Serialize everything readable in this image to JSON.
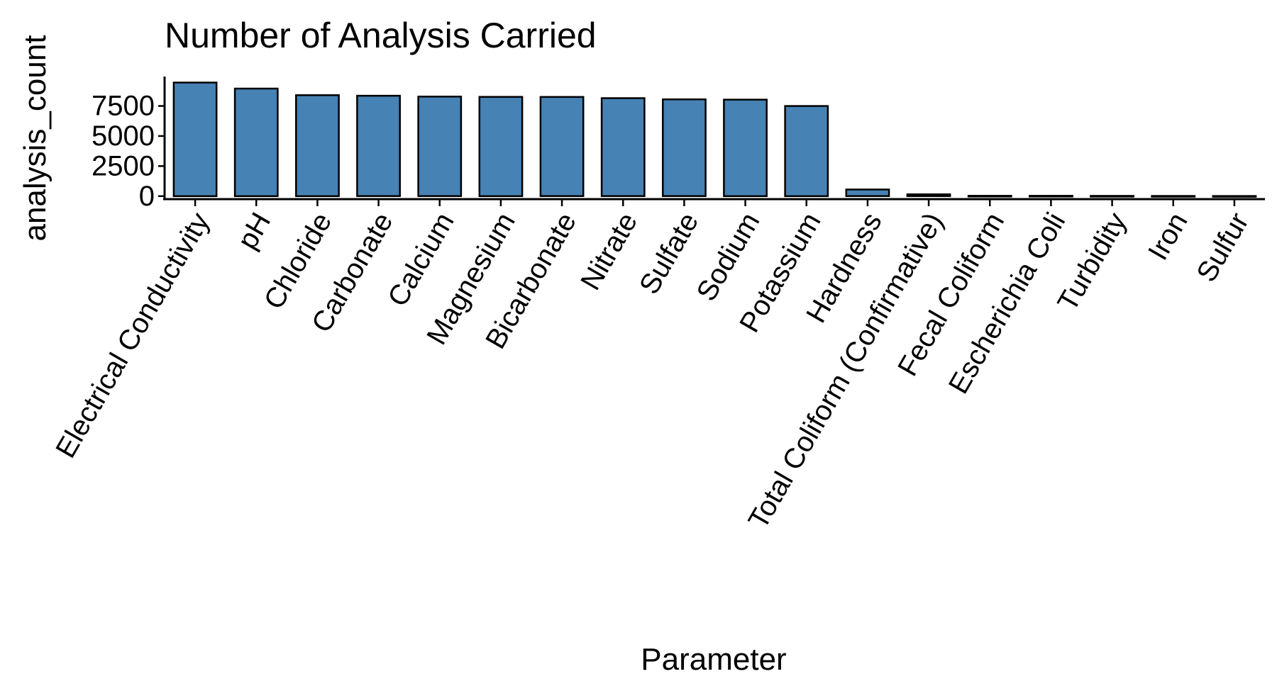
{
  "chart_data": {
    "type": "bar",
    "title": "Number of Analysis Carried",
    "xlabel": "Parameter",
    "ylabel": "analysis_count",
    "categories": [
      "Electrical Conductivity",
      "pH",
      "Chloride",
      "Carbonate",
      "Calcium",
      "Magnesium",
      "Bicarbonate",
      "Nitrate",
      "Sulfate",
      "Sodium",
      "Potassium",
      "Hardness",
      "Total Coliform (Confirmative)",
      "Fecal Coliform",
      "Escherichia Coli",
      "Turbidity",
      "Iron",
      "Sulfur"
    ],
    "values": [
      9450,
      8950,
      8400,
      8350,
      8280,
      8260,
      8250,
      8150,
      8050,
      8030,
      7500,
      550,
      150,
      30,
      25,
      20,
      15,
      10
    ],
    "ylim": [
      -250,
      9950
    ],
    "yticks": [
      0,
      2500,
      5000,
      7500
    ],
    "ytick_labels": [
      "0",
      "2500",
      "5000",
      "7500"
    ],
    "bar_color": "#4682B4",
    "bar_edge_color": "#000000",
    "grid": false,
    "legend": false
  }
}
